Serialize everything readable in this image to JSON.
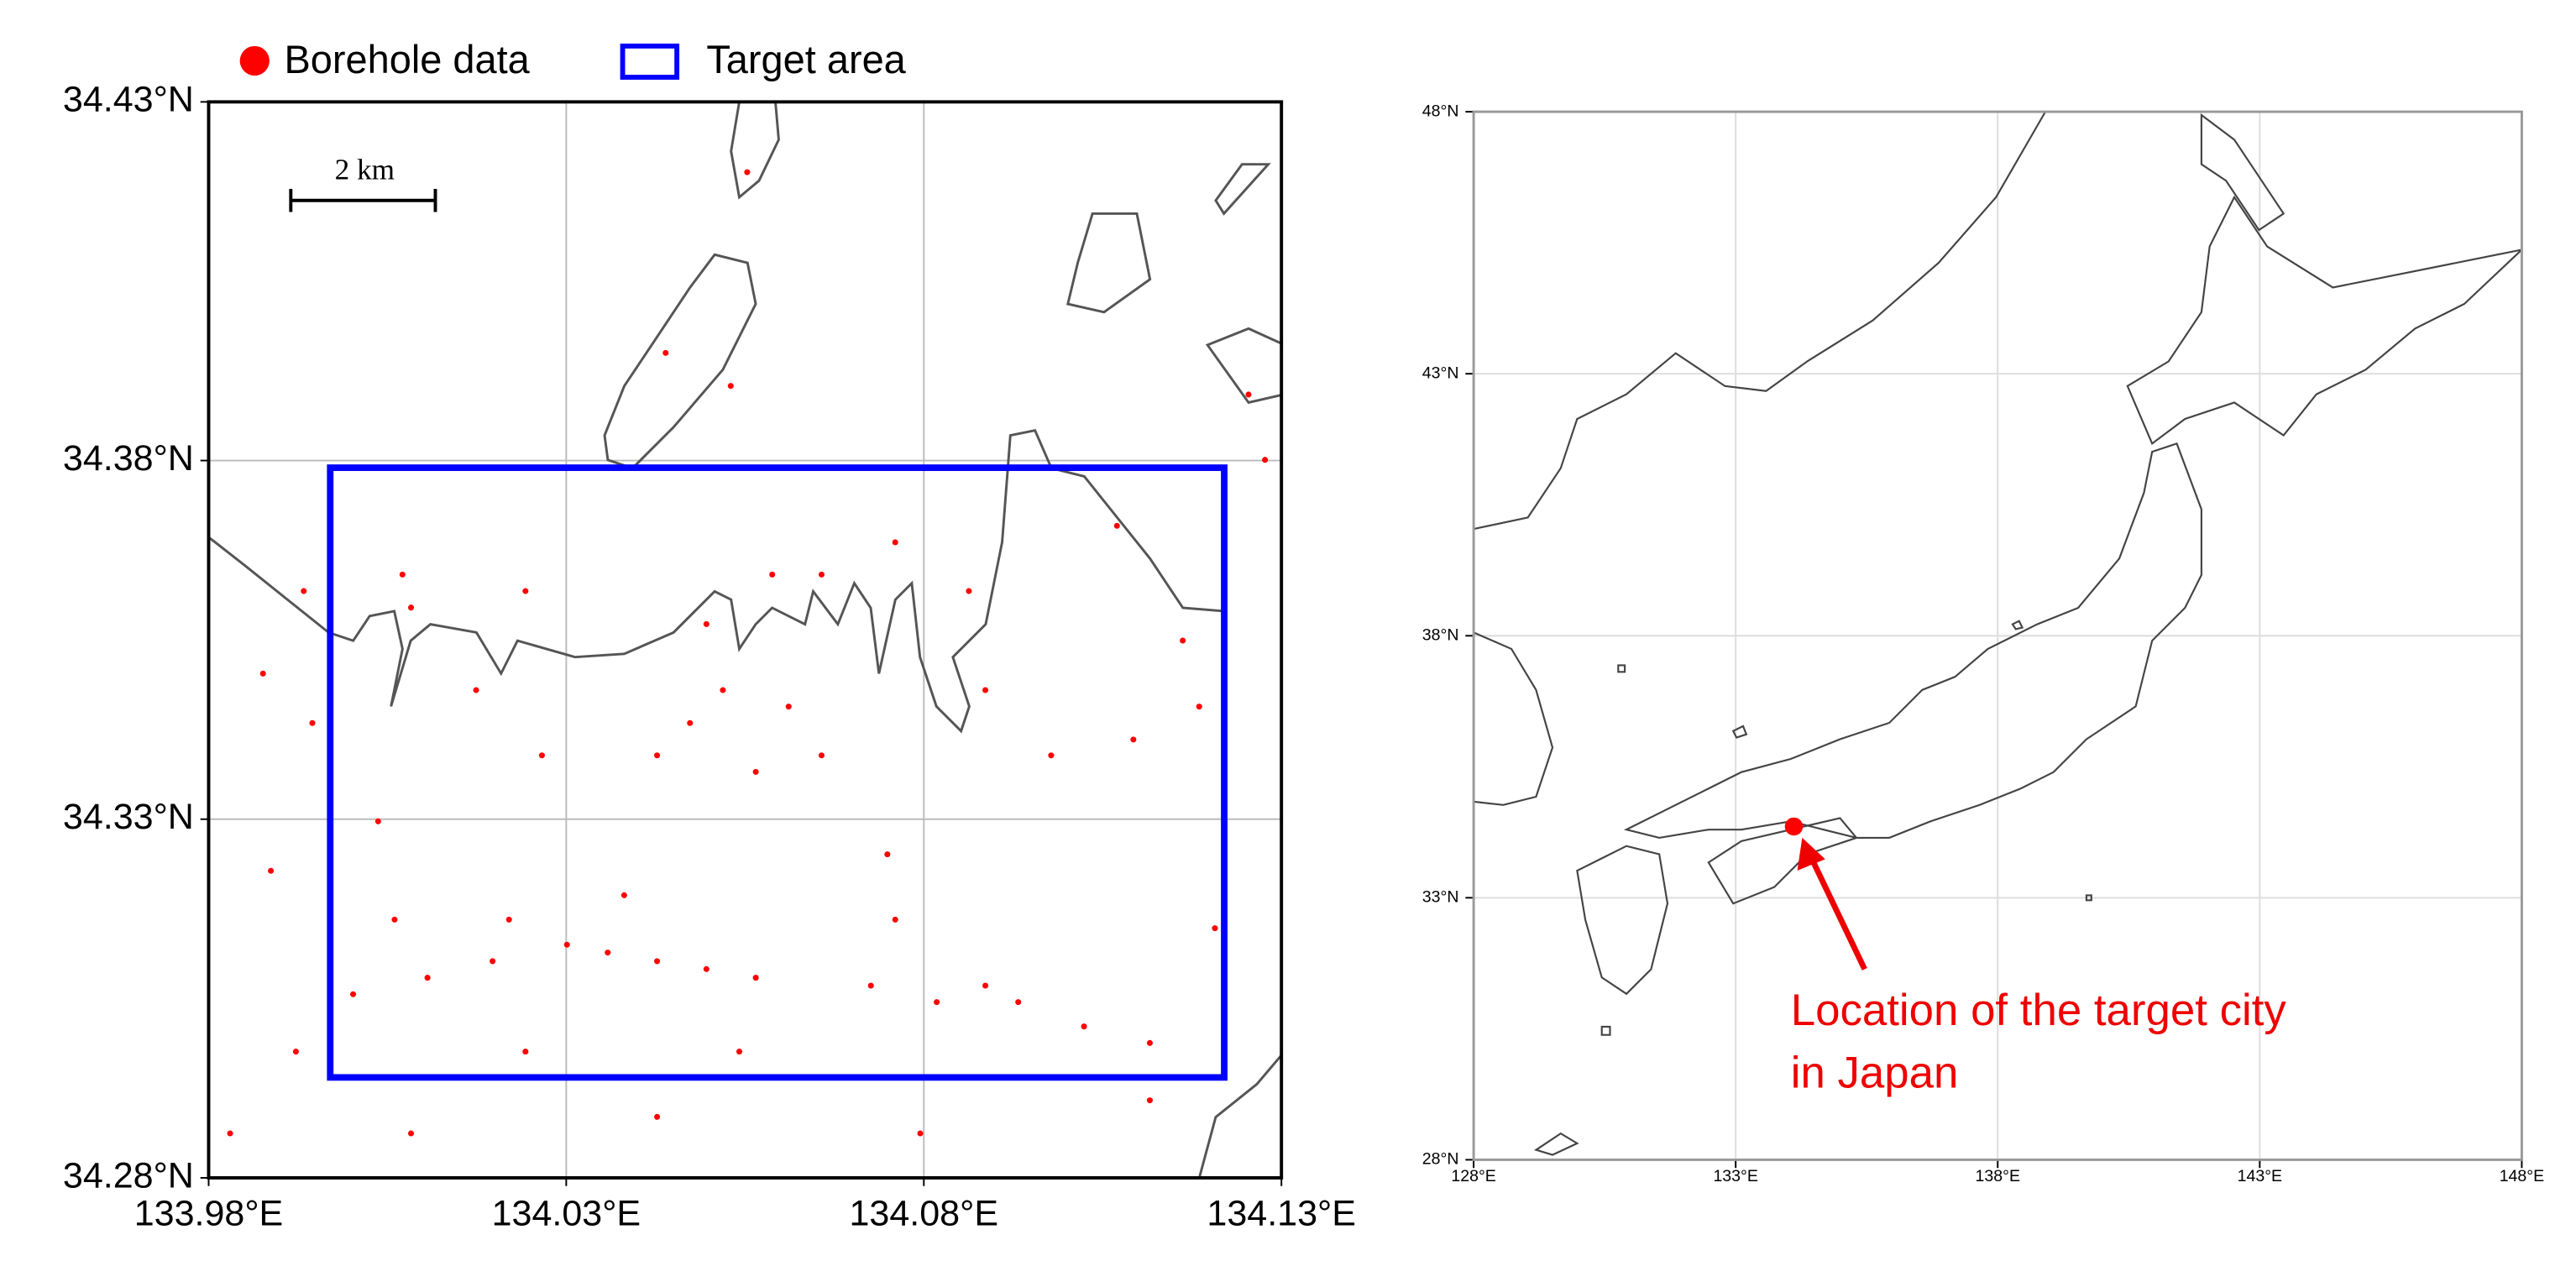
{
  "left_map": {
    "legend": [
      "Borehole data",
      "Target area"
    ],
    "borehole_color": "#ff0000",
    "target_color": "#0000ff",
    "xlim": [
      133.98,
      134.13
    ],
    "ylim": [
      34.28,
      34.43
    ],
    "xticks": [
      {
        "value": 133.98,
        "label": "133.98°E"
      },
      {
        "value": 134.03,
        "label": "134.03°E"
      },
      {
        "value": 134.08,
        "label": "134.08°E"
      },
      {
        "value": 134.13,
        "label": "134.13°E"
      }
    ],
    "yticks": [
      {
        "value": 34.28,
        "label": "34.28°N"
      },
      {
        "value": 34.33,
        "label": "34.33°N"
      },
      {
        "value": 34.38,
        "label": "34.38°N"
      },
      {
        "value": 34.43,
        "label": "34.43°N"
      }
    ],
    "grid": true,
    "scale_bar": "2 km",
    "target_area": {
      "lon": [
        133.997,
        134.122
      ],
      "lat": [
        34.294,
        34.379
      ]
    },
    "boreholes": {
      "x": [
        133.9876,
        133.9933,
        133.9945,
        133.9887,
        133.9922,
        134.0037,
        134.006,
        134.0002,
        134.0106,
        134.0197,
        134.022,
        134.0243,
        134.0301,
        134.0358,
        134.0427,
        134.0496,
        134.0565,
        134.0381,
        134.0427,
        134.0473,
        134.0519,
        134.0565,
        134.0611,
        134.0657,
        134.0657,
        134.076,
        134.0749,
        134.076,
        134.0726,
        134.0818,
        134.0886,
        134.0932,
        134.1024,
        134.1116,
        134.1207,
        134.1185,
        134.1093,
        134.0978,
        134.0886,
        134.0863,
        134.107,
        134.1162,
        134.0266,
        134.0174,
        134.0083,
        134.0071,
        134.0439,
        134.053,
        134.0553,
        134.1254,
        134.1277,
        133.983,
        134.0083,
        134.0427,
        134.0795,
        134.1116,
        134.0542,
        134.0588,
        134.0496,
        134.0243
      ],
      "y": [
        34.3503,
        34.3618,
        34.3434,
        34.3228,
        34.2976,
        34.3297,
        34.316,
        34.3056,
        34.3079,
        34.3102,
        34.316,
        34.2976,
        34.3125,
        34.3114,
        34.3102,
        34.3091,
        34.3079,
        34.3194,
        34.3389,
        34.3434,
        34.348,
        34.3366,
        34.3457,
        34.3389,
        34.3641,
        34.3686,
        34.3251,
        34.316,
        34.3068,
        34.3045,
        34.3068,
        34.3045,
        34.3011,
        34.2988,
        34.3148,
        34.3457,
        34.3411,
        34.3389,
        34.348,
        34.3618,
        34.3709,
        34.3549,
        34.3389,
        34.348,
        34.3595,
        34.3641,
        34.395,
        34.3904,
        34.4202,
        34.3892,
        34.3801,
        34.2862,
        34.2862,
        34.2885,
        34.2862,
        34.2908,
        34.2976,
        34.3641,
        34.3572,
        34.3618
      ]
    }
  },
  "right_map": {
    "xlim": [
      128,
      148
    ],
    "ylim": [
      28,
      48
    ],
    "xticks": [
      {
        "value": 128,
        "label": "128°E"
      },
      {
        "value": 133,
        "label": "133°E"
      },
      {
        "value": 138,
        "label": "138°E"
      },
      {
        "value": 143,
        "label": "143°E"
      },
      {
        "value": 148,
        "label": "148°E"
      }
    ],
    "yticks": [
      {
        "value": 28,
        "label": "28°N"
      },
      {
        "value": 33,
        "label": "33°N"
      },
      {
        "value": 38,
        "label": "38°N"
      },
      {
        "value": 43,
        "label": "43°N"
      },
      {
        "value": 48,
        "label": "48°N"
      }
    ],
    "grid": true,
    "marker_color": "#ff0000",
    "target_city": {
      "lon": 134.11,
      "lat": 34.36
    },
    "annotation": [
      "Location of the target city",
      "in Japan"
    ]
  }
}
